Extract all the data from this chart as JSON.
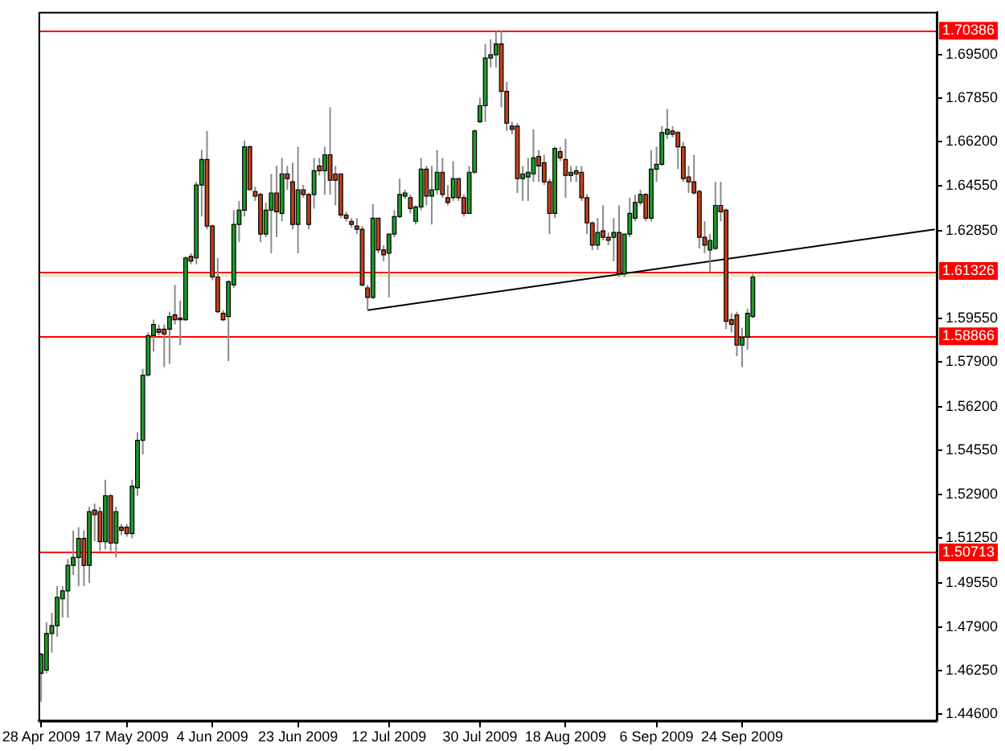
{
  "chart_data": {
    "type": "candlestick",
    "categories": [
      "28 Apr 2009",
      null,
      null,
      null,
      null,
      null,
      null,
      null,
      null,
      null,
      null,
      null,
      null,
      null,
      null,
      null,
      "17 May 2009",
      null,
      null,
      null,
      null,
      null,
      null,
      null,
      null,
      null,
      null,
      null,
      null,
      null,
      null,
      null,
      "4 Jun 2009",
      null,
      null,
      null,
      null,
      null,
      null,
      null,
      null,
      null,
      null,
      null,
      null,
      null,
      null,
      null,
      "23 Jun 2009",
      null,
      null,
      null,
      null,
      null,
      null,
      null,
      null,
      null,
      null,
      null,
      null,
      null,
      null,
      null,
      null,
      "12 Jul 2009",
      null,
      null,
      null,
      null,
      null,
      null,
      null,
      null,
      null,
      null,
      null,
      null,
      null,
      null,
      null,
      null,
      "30 Jul 2009",
      null,
      null,
      null,
      null,
      null,
      null,
      null,
      null,
      null,
      null,
      null,
      null,
      null,
      null,
      null,
      "18 Aug 2009",
      null,
      null,
      null,
      null,
      null,
      null,
      null,
      null,
      null,
      null,
      null,
      null,
      null,
      null,
      null,
      null,
      "6 Sep 2009",
      null,
      null,
      null,
      null,
      null,
      null,
      null,
      null,
      null,
      null,
      null,
      null,
      null,
      null,
      null,
      "24 Sep 2009",
      null,
      null,
      null,
      null,
      null,
      null,
      null,
      null,
      null,
      null,
      null,
      null,
      null,
      null,
      null,
      null,
      null,
      null,
      null,
      null,
      null,
      null,
      null,
      null,
      null,
      null,
      null,
      null,
      null,
      null,
      null,
      null,
      null,
      null,
      null,
      null
    ],
    "ohlc": [
      [
        1.4615,
        1.4693,
        1.4508,
        1.4687
      ],
      [
        1.4627,
        1.4807,
        1.4615,
        1.4765
      ],
      [
        1.4765,
        1.4843,
        1.4693,
        1.4795
      ],
      [
        1.4795,
        1.4944,
        1.4753,
        1.4902
      ],
      [
        1.4896,
        1.4944,
        1.4825,
        1.4926
      ],
      [
        1.4926,
        1.5046,
        1.4825,
        1.5022
      ],
      [
        1.5022,
        1.5154,
        1.4986,
        1.5052
      ],
      [
        1.5052,
        1.5166,
        1.4944,
        1.5124
      ],
      [
        1.5124,
        1.5154,
        1.4944,
        1.5022
      ],
      [
        1.5022,
        1.5243,
        1.4956,
        1.5225
      ],
      [
        1.5231,
        1.5255,
        1.5112,
        1.5213
      ],
      [
        1.5225,
        1.5243,
        1.5076,
        1.5112
      ],
      [
        1.5112,
        1.5345,
        1.5082,
        1.5285
      ],
      [
        1.5285,
        1.5291,
        1.5076,
        1.5106
      ],
      [
        1.5106,
        1.5243,
        1.5052,
        1.5225
      ],
      [
        1.5166,
        1.5178,
        1.5136,
        1.5154
      ],
      [
        1.5166,
        1.5178,
        1.513,
        1.5142
      ],
      [
        1.5142,
        1.5345,
        1.5124,
        1.5321
      ],
      [
        1.5315,
        1.5524,
        1.5285,
        1.5494
      ],
      [
        1.5494,
        1.5764,
        1.5441,
        1.574
      ],
      [
        1.574,
        1.5901,
        1.5734,
        1.5889
      ],
      [
        1.5889,
        1.5949,
        1.5829,
        1.5931
      ],
      [
        1.5913,
        1.5931,
        1.5889,
        1.5901
      ],
      [
        1.5913,
        1.5931,
        1.577,
        1.5895
      ],
      [
        1.5913,
        1.5979,
        1.5782,
        1.5961
      ],
      [
        1.5967,
        1.608,
        1.5931,
        1.5949
      ],
      [
        1.5955,
        1.6021,
        1.5853,
        1.5949
      ],
      [
        1.5949,
        1.6188,
        1.5943,
        1.6182
      ],
      [
        1.6188,
        1.62,
        1.6158,
        1.617
      ],
      [
        1.6182,
        1.6469,
        1.6158,
        1.6457
      ],
      [
        1.6457,
        1.6589,
        1.6338,
        1.6553
      ],
      [
        1.6553,
        1.6661,
        1.629,
        1.6302
      ],
      [
        1.6302,
        1.6308,
        1.6098,
        1.611
      ],
      [
        1.611,
        1.6182,
        1.5973,
        1.5979
      ],
      [
        1.5973,
        1.5985,
        1.5943,
        1.5949
      ],
      [
        1.5961,
        1.6098,
        1.5793,
        1.6092
      ],
      [
        1.608,
        1.6362,
        1.6069,
        1.6308
      ],
      [
        1.6308,
        1.6397,
        1.6242,
        1.6362
      ],
      [
        1.6362,
        1.6625,
        1.6338,
        1.6601
      ],
      [
        1.6601,
        1.6607,
        1.6439,
        1.6439
      ],
      [
        1.6433,
        1.6451,
        1.6397,
        1.6415
      ],
      [
        1.6421,
        1.6427,
        1.6242,
        1.6272
      ],
      [
        1.6272,
        1.6391,
        1.626,
        1.6362
      ],
      [
        1.6362,
        1.6499,
        1.62,
        1.6427
      ],
      [
        1.6427,
        1.6529,
        1.626,
        1.6356
      ],
      [
        1.635,
        1.6559,
        1.632,
        1.6499
      ],
      [
        1.6499,
        1.6529,
        1.6439,
        1.6481
      ],
      [
        1.6469,
        1.6541,
        1.629,
        1.6308
      ],
      [
        1.6308,
        1.6601,
        1.62,
        1.6439
      ],
      [
        1.6439,
        1.6457,
        1.6409,
        1.6421
      ],
      [
        1.6421,
        1.6427,
        1.629,
        1.6308
      ],
      [
        1.6421,
        1.6559,
        1.6368,
        1.6511
      ],
      [
        1.6529,
        1.6559,
        1.6493,
        1.6511
      ],
      [
        1.6511,
        1.6601,
        1.6421,
        1.6571
      ],
      [
        1.6571,
        1.675,
        1.6421,
        1.6475
      ],
      [
        1.6499,
        1.6529,
        1.638,
        1.6475
      ],
      [
        1.6499,
        1.6499,
        1.6332,
        1.6344
      ],
      [
        1.6344,
        1.6356,
        1.632,
        1.6332
      ],
      [
        1.632,
        1.6332,
        1.6296,
        1.6308
      ],
      [
        1.6302,
        1.6332,
        1.6272,
        1.629
      ],
      [
        1.629,
        1.6302,
        1.6074,
        1.608
      ],
      [
        1.6069,
        1.608,
        1.5985,
        1.6033
      ],
      [
        1.6033,
        1.6385,
        1.6027,
        1.6332
      ],
      [
        1.6332,
        1.6332,
        1.62,
        1.6212
      ],
      [
        1.6212,
        1.623,
        1.617,
        1.6194
      ],
      [
        1.62,
        1.6272,
        1.6033,
        1.6272
      ],
      [
        1.6272,
        1.6362,
        1.626,
        1.6338
      ],
      [
        1.6338,
        1.6481,
        1.6332,
        1.6421
      ],
      [
        1.6415,
        1.6439,
        1.6403,
        1.6427
      ],
      [
        1.6409,
        1.6421,
        1.635,
        1.6368
      ],
      [
        1.632,
        1.638,
        1.6308,
        1.6374
      ],
      [
        1.6374,
        1.6559,
        1.6362,
        1.6517
      ],
      [
        1.6517,
        1.6529,
        1.638,
        1.6415
      ],
      [
        1.6415,
        1.6529,
        1.6308,
        1.6439
      ],
      [
        1.6439,
        1.6589,
        1.6421,
        1.6505
      ],
      [
        1.6505,
        1.6559,
        1.6409,
        1.6421
      ],
      [
        1.6409,
        1.6457,
        1.638,
        1.6391
      ],
      [
        1.6409,
        1.6547,
        1.6397,
        1.6481
      ],
      [
        1.6481,
        1.6481,
        1.6397,
        1.6409
      ],
      [
        1.6409,
        1.6421,
        1.6338,
        1.635
      ],
      [
        1.635,
        1.6529,
        1.635,
        1.6505
      ],
      [
        1.6505,
        1.6667,
        1.6499,
        1.6661
      ],
      [
        1.6696,
        1.6786,
        1.669,
        1.6756
      ],
      [
        1.6756,
        1.6989,
        1.6696,
        1.6936
      ],
      [
        1.6936,
        1.7007,
        1.69,
        1.6948
      ],
      [
        1.6948,
        1.7037,
        1.69,
        1.6989
      ],
      [
        1.6989,
        1.7039,
        1.675,
        1.681
      ],
      [
        1.681,
        1.6846,
        1.6661,
        1.669
      ],
      [
        1.6679,
        1.6696,
        1.6649,
        1.6667
      ],
      [
        1.6679,
        1.669,
        1.6427,
        1.6481
      ],
      [
        1.6481,
        1.6529,
        1.6397,
        1.6499
      ],
      [
        1.6487,
        1.6559,
        1.6397,
        1.6505
      ],
      [
        1.6499,
        1.6667,
        1.6469,
        1.6559
      ],
      [
        1.6565,
        1.6589,
        1.6469,
        1.6529
      ],
      [
        1.6541,
        1.6571,
        1.6457,
        1.6469
      ],
      [
        1.6469,
        1.6481,
        1.6272,
        1.635
      ],
      [
        1.635,
        1.6601,
        1.6332,
        1.6595
      ],
      [
        1.6583,
        1.6601,
        1.6547,
        1.6559
      ],
      [
        1.6553,
        1.6631,
        1.6409,
        1.6493
      ],
      [
        1.6493,
        1.6529,
        1.6469,
        1.6505
      ],
      [
        1.6511,
        1.6529,
        1.6469,
        1.6499
      ],
      [
        1.6505,
        1.6529,
        1.6397,
        1.6409
      ],
      [
        1.6409,
        1.6421,
        1.6272,
        1.6314
      ],
      [
        1.6314,
        1.632,
        1.6212,
        1.623
      ],
      [
        1.623,
        1.6332,
        1.6212,
        1.6278
      ],
      [
        1.6284,
        1.638,
        1.6248,
        1.626
      ],
      [
        1.626,
        1.6278,
        1.623,
        1.6248
      ],
      [
        1.626,
        1.6332,
        1.617,
        1.6278
      ],
      [
        1.6278,
        1.638,
        1.611,
        1.6122
      ],
      [
        1.6122,
        1.6272,
        1.611,
        1.6272
      ],
      [
        1.6272,
        1.6409,
        1.626,
        1.635
      ],
      [
        1.6332,
        1.6421,
        1.632,
        1.6391
      ],
      [
        1.6391,
        1.6439,
        1.638,
        1.6421
      ],
      [
        1.6421,
        1.6427,
        1.632,
        1.6332
      ],
      [
        1.6332,
        1.6589,
        1.632,
        1.6517
      ],
      [
        1.6517,
        1.6601,
        1.6469,
        1.6535
      ],
      [
        1.6535,
        1.6679,
        1.6529,
        1.6655
      ],
      [
        1.6649,
        1.6744,
        1.6631,
        1.6667
      ],
      [
        1.6661,
        1.6679,
        1.6637,
        1.6649
      ],
      [
        1.6655,
        1.6661,
        1.6517,
        1.6601
      ],
      [
        1.6601,
        1.6619,
        1.6469,
        1.6481
      ],
      [
        1.6487,
        1.6529,
        1.6427,
        1.6469
      ],
      [
        1.6469,
        1.6571,
        1.6421,
        1.6427
      ],
      [
        1.6433,
        1.6439,
        1.6218,
        1.626
      ],
      [
        1.626,
        1.632,
        1.62,
        1.623
      ],
      [
        1.6212,
        1.6272,
        1.6128,
        1.6248
      ],
      [
        1.6218,
        1.6469,
        1.6212,
        1.638
      ],
      [
        1.638,
        1.6469,
        1.632,
        1.6356
      ],
      [
        1.6362,
        1.6368,
        1.5913,
        1.5943
      ],
      [
        1.5949,
        1.5973,
        1.5901,
        1.5931
      ],
      [
        1.5967,
        1.5979,
        1.5811,
        1.5853
      ],
      [
        1.5853,
        1.5919,
        1.577,
        1.5883
      ],
      [
        1.5883,
        1.5991,
        1.5835,
        1.5973
      ],
      [
        1.5961,
        1.6122,
        1.5955,
        1.611
      ],
      null,
      null,
      null,
      null,
      null,
      null,
      null,
      null,
      null,
      null,
      null,
      null,
      null,
      null,
      null,
      null,
      null,
      null,
      null,
      null,
      null,
      null,
      null,
      null,
      null,
      null,
      null,
      null,
      null,
      null,
      null,
      null,
      null,
      null
    ],
    "series": [
      {
        "type": "line",
        "color": "#000000",
        "values": [
          null,
          null,
          null,
          null,
          null,
          null,
          null,
          null,
          null,
          null,
          null,
          null,
          null,
          null,
          null,
          null,
          null,
          null,
          null,
          null,
          null,
          null,
          null,
          null,
          null,
          null,
          null,
          null,
          null,
          null,
          null,
          null,
          null,
          null,
          null,
          null,
          null,
          null,
          null,
          null,
          null,
          null,
          null,
          null,
          null,
          null,
          null,
          null,
          null,
          null,
          null,
          null,
          null,
          null,
          null,
          null,
          null,
          null,
          null,
          null,
          null,
          1.5985,
          null,
          null,
          null,
          null,
          null,
          null,
          null,
          null,
          null,
          null,
          null,
          null,
          null,
          null,
          null,
          null,
          null,
          null,
          null,
          null,
          null,
          null,
          null,
          null,
          null,
          null,
          null,
          null,
          null,
          null,
          null,
          null,
          null,
          null,
          null,
          null,
          null,
          null,
          null,
          null,
          null,
          null,
          null,
          null,
          null,
          null,
          null,
          null,
          null,
          null,
          null,
          null,
          null,
          null,
          null,
          null,
          null,
          null,
          null,
          null,
          null,
          null,
          null,
          null,
          null,
          null,
          null,
          null,
          null,
          null,
          null,
          null,
          null,
          null,
          null,
          null,
          null,
          null,
          null,
          null,
          null,
          null,
          null,
          null,
          null,
          null,
          null,
          null,
          null,
          null,
          null,
          null,
          null,
          null,
          null,
          null,
          null,
          null,
          null,
          null,
          null,
          null,
          null,
          null,
          null,
          1.629
        ]
      }
    ],
    "ylim": [
      1.4436,
      1.711
    ],
    "yticks": [
      {
        "value": 1.695,
        "label": "1.69500"
      },
      {
        "value": 1.6785,
        "label": "1.67850"
      },
      {
        "value": 1.662,
        "label": "1.66200"
      },
      {
        "value": 1.6455,
        "label": "1.64550"
      },
      {
        "value": 1.6285,
        "label": "1.62850"
      },
      {
        "value": 1.5955,
        "label": "1.59550"
      },
      {
        "value": 1.579,
        "label": "1.57900"
      },
      {
        "value": 1.562,
        "label": "1.56200"
      },
      {
        "value": 1.5455,
        "label": "1.54550"
      },
      {
        "value": 1.529,
        "label": "1.52900"
      },
      {
        "value": 1.5125,
        "label": "1.51250"
      },
      {
        "value": 1.4955,
        "label": "1.49550"
      },
      {
        "value": 1.479,
        "label": "1.47900"
      },
      {
        "value": 1.4625,
        "label": "1.46250"
      },
      {
        "value": 1.446,
        "label": "1.44600"
      }
    ],
    "ref_lines": [
      {
        "axis": "y",
        "value": 1.70386,
        "label": "1.70386",
        "color": "#ff0000"
      },
      {
        "axis": "y",
        "value": 1.61326,
        "label": "1.61326",
        "color": "#ff0000"
      },
      {
        "axis": "y",
        "value": 1.612,
        "color": "#f2e4a0"
      },
      {
        "axis": "y",
        "value": 1.58866,
        "label": "1.58866",
        "color": "#ff0000"
      },
      {
        "axis": "y",
        "value": 1.50713,
        "label": "1.50713",
        "color": "#ff0000"
      }
    ],
    "grid": false,
    "legend": false
  }
}
